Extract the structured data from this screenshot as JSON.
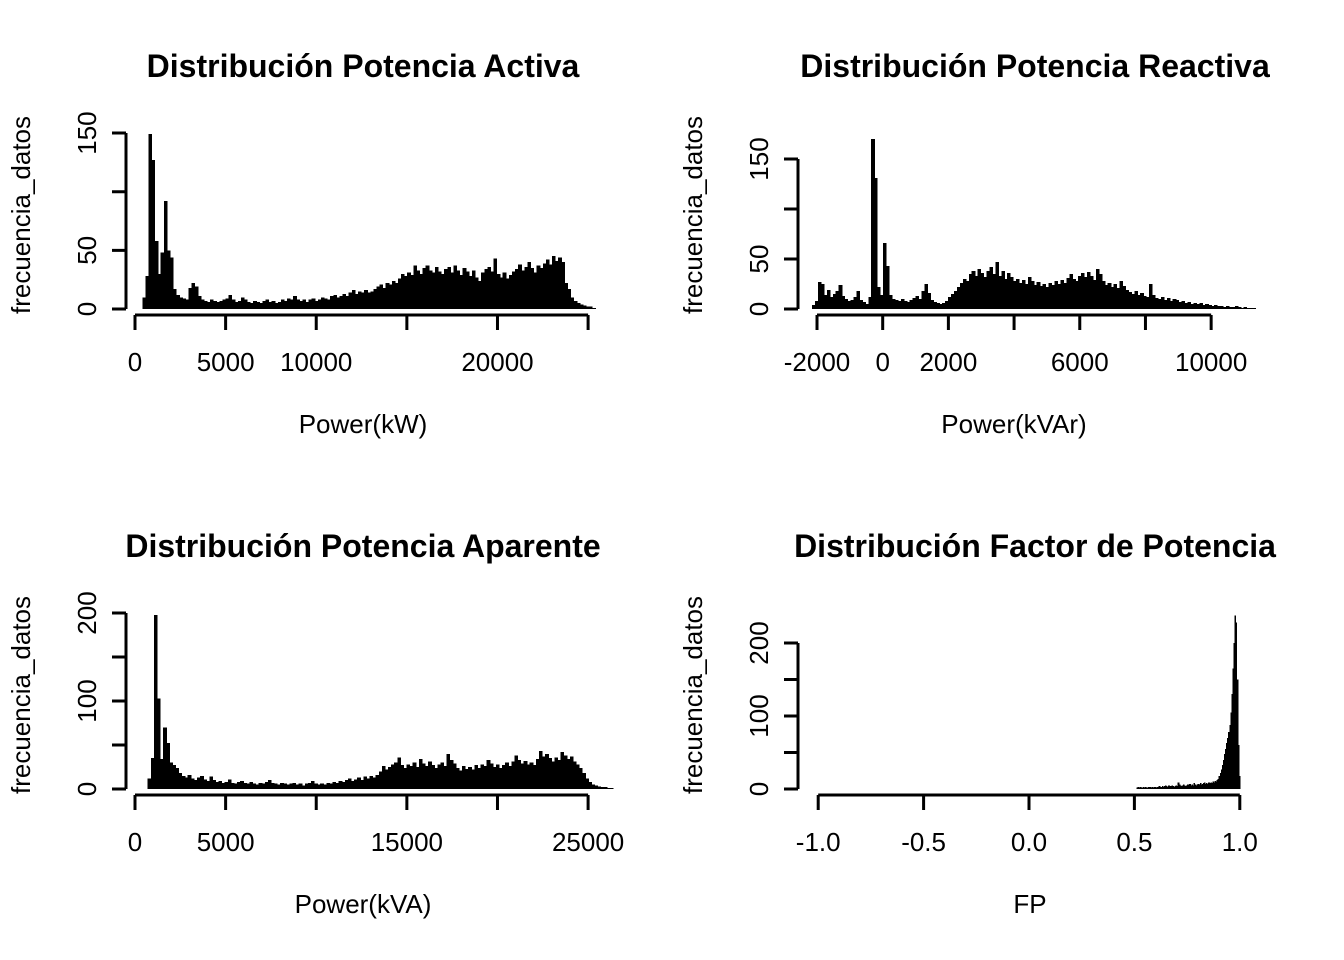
{
  "figure_background": "#ffffff",
  "bar_color": "#000000",
  "axis_color": "#000000",
  "chart_data": [
    {
      "type": "bar",
      "subtype": "histogram",
      "title": "Distribución Potencia Activa",
      "xlabel": "Power(kW)",
      "ylabel": "frecuencia_datos",
      "xlim": [
        -600,
        26200
      ],
      "ylim": [
        0,
        165
      ],
      "grid": false,
      "legend": "none",
      "xticks": [
        0,
        5000,
        10000,
        15000,
        20000,
        25000
      ],
      "xtick_labels": [
        "0",
        "5000",
        "10000",
        "",
        "20000",
        ""
      ],
      "yticks": [
        0,
        50,
        100,
        150
      ],
      "ytick_labels": [
        "0",
        "50",
        "",
        "150"
      ],
      "bin_start": 400,
      "bin_width": 170,
      "values": [
        10,
        28,
        149,
        127,
        58,
        30,
        48,
        92,
        50,
        44,
        17,
        12,
        10,
        9,
        8,
        18,
        22,
        19,
        11,
        8,
        7,
        6,
        8,
        7,
        6,
        7,
        8,
        9,
        12,
        8,
        6,
        7,
        10,
        8,
        6,
        5,
        7,
        6,
        5,
        7,
        8,
        6,
        7,
        5,
        6,
        8,
        7,
        9,
        8,
        11,
        8,
        7,
        8,
        6,
        8,
        9,
        7,
        8,
        10,
        9,
        8,
        11,
        12,
        10,
        11,
        13,
        11,
        14,
        16,
        13,
        15,
        14,
        16,
        14,
        15,
        17,
        19,
        21,
        18,
        22,
        21,
        24,
        22,
        26,
        30,
        28,
        31,
        29,
        37,
        33,
        30,
        35,
        37,
        33,
        31,
        36,
        32,
        30,
        34,
        36,
        31,
        37,
        33,
        29,
        35,
        32,
        28,
        33,
        27,
        24,
        31,
        34,
        36,
        32,
        43,
        30,
        27,
        31,
        26,
        29,
        32,
        34,
        38,
        33,
        36,
        40,
        35,
        31,
        37,
        35,
        39,
        42,
        38,
        45,
        41,
        44,
        40,
        22,
        17,
        10,
        7,
        5,
        4,
        3,
        2,
        2,
        1
      ]
    },
    {
      "type": "bar",
      "subtype": "histogram",
      "title": "Distribución Potencia Reactiva",
      "xlabel": "Power(kVAr)",
      "ylabel": "frecuencia_datos",
      "xlim": [
        -2700,
        11900
      ],
      "ylim": [
        0,
        178
      ],
      "grid": false,
      "legend": "none",
      "xticks": [
        -2000,
        0,
        2000,
        4000,
        6000,
        8000,
        10000
      ],
      "xtick_labels": [
        "-2000",
        "0",
        "2000",
        "",
        "6000",
        "",
        "10000"
      ],
      "yticks": [
        0,
        50,
        100,
        150
      ],
      "ytick_labels": [
        "0",
        "50",
        "",
        "150"
      ],
      "bin_start": -2150,
      "bin_width": 90,
      "values": [
        4,
        8,
        27,
        25,
        14,
        19,
        12,
        15,
        18,
        24,
        13,
        10,
        8,
        9,
        12,
        18,
        9,
        7,
        5,
        12,
        170,
        131,
        22,
        14,
        66,
        43,
        14,
        10,
        9,
        8,
        10,
        8,
        7,
        9,
        11,
        13,
        10,
        18,
        25,
        16,
        9,
        7,
        6,
        5,
        6,
        8,
        12,
        15,
        18,
        22,
        26,
        30,
        28,
        35,
        38,
        33,
        40,
        36,
        32,
        38,
        42,
        35,
        47,
        33,
        38,
        30,
        36,
        32,
        28,
        30,
        26,
        29,
        25,
        32,
        28,
        24,
        27,
        23,
        25,
        22,
        26,
        24,
        28,
        25,
        29,
        26,
        31,
        35,
        30,
        28,
        33,
        36,
        32,
        37,
        33,
        29,
        40,
        35,
        28,
        24,
        26,
        22,
        25,
        21,
        28,
        23,
        19,
        17,
        15,
        18,
        14,
        16,
        13,
        12,
        25,
        14,
        11,
        10,
        12,
        9,
        11,
        8,
        10,
        9,
        7,
        8,
        6,
        7,
        5,
        6,
        5,
        6,
        4,
        5,
        4,
        3,
        4,
        3,
        3,
        2,
        3,
        2,
        2,
        3,
        2,
        1,
        2,
        1,
        1,
        1
      ]
    },
    {
      "type": "bar",
      "subtype": "histogram",
      "title": "Distribución Potencia Aparente",
      "xlabel": "Power(kVA)",
      "ylabel": "frecuencia_datos",
      "xlim": [
        -600,
        26800
      ],
      "ylim": [
        0,
        206
      ],
      "grid": false,
      "legend": "none",
      "xticks": [
        0,
        5000,
        10000,
        15000,
        20000,
        25000
      ],
      "xtick_labels": [
        "0",
        "5000",
        "",
        "15000",
        "",
        "25000"
      ],
      "yticks": [
        0,
        50,
        100,
        150,
        200
      ],
      "ytick_labels": [
        "0",
        "",
        "100",
        "",
        "200"
      ],
      "bin_start": 700,
      "bin_width": 170,
      "values": [
        12,
        35,
        198,
        103,
        34,
        70,
        52,
        30,
        27,
        24,
        18,
        15,
        13,
        16,
        12,
        10,
        13,
        15,
        11,
        9,
        14,
        10,
        8,
        9,
        7,
        8,
        11,
        7,
        6,
        8,
        9,
        7,
        6,
        8,
        6,
        5,
        7,
        6,
        8,
        10,
        7,
        6,
        5,
        7,
        6,
        5,
        6,
        7,
        5,
        6,
        4,
        6,
        7,
        9,
        6,
        5,
        6,
        5,
        7,
        6,
        8,
        7,
        9,
        8,
        10,
        12,
        9,
        11,
        13,
        10,
        14,
        12,
        15,
        13,
        16,
        20,
        26,
        22,
        25,
        28,
        30,
        36,
        27,
        24,
        28,
        26,
        30,
        25,
        34,
        29,
        26,
        31,
        27,
        24,
        28,
        30,
        26,
        40,
        33,
        29,
        24,
        21,
        26,
        23,
        25,
        22,
        27,
        24,
        28,
        26,
        33,
        29,
        25,
        28,
        24,
        27,
        30,
        26,
        31,
        38,
        33,
        29,
        32,
        28,
        30,
        27,
        34,
        43,
        37,
        40,
        35,
        31,
        36,
        33,
        42,
        38,
        34,
        37,
        31,
        28,
        24,
        18,
        12,
        8,
        5,
        4,
        3,
        2,
        2,
        1,
        1
      ]
    },
    {
      "type": "bar",
      "subtype": "histogram",
      "title": "Distribución Factor de Potencia",
      "xlabel": "FP",
      "ylabel": "frecuencia_datos",
      "xlim": [
        -1.09,
        1.09
      ],
      "ylim": [
        0,
        247
      ],
      "grid": false,
      "legend": "none",
      "xticks": [
        -1.0,
        -0.5,
        0.0,
        0.5,
        1.0
      ],
      "xtick_labels": [
        "-1.0",
        "-0.5",
        "0.0",
        "0.5",
        "1.0"
      ],
      "yticks": [
        0,
        50,
        100,
        150,
        200
      ],
      "ytick_labels": [
        "0",
        "",
        "100",
        "",
        "200"
      ],
      "bin_start": 0.51,
      "bin_width": 0.005,
      "values": [
        2,
        3,
        2,
        3,
        2,
        2,
        3,
        2,
        3,
        2,
        2,
        3,
        3,
        2,
        3,
        2,
        3,
        3,
        2,
        3,
        3,
        4,
        3,
        3,
        4,
        3,
        4,
        5,
        4,
        3,
        5,
        4,
        4,
        5,
        4,
        3,
        4,
        5,
        4,
        9,
        6,
        5,
        4,
        5,
        6,
        5,
        4,
        5,
        6,
        5,
        7,
        5,
        6,
        5,
        8,
        6,
        5,
        6,
        7,
        6,
        8,
        6,
        7,
        8,
        9,
        7,
        8,
        7,
        9,
        8,
        9,
        8,
        10,
        9,
        11,
        10,
        12,
        14,
        18,
        22,
        27,
        33,
        40,
        48,
        55,
        63,
        70,
        78,
        88,
        105,
        130,
        165,
        200,
        238,
        228,
        150,
        60,
        18
      ]
    }
  ]
}
